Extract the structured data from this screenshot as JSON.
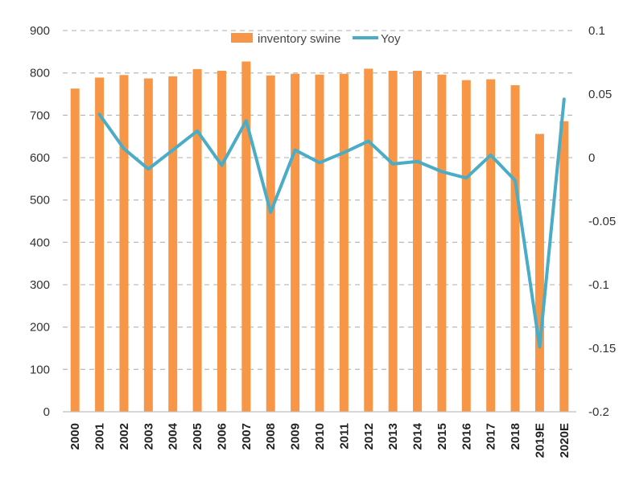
{
  "chart_data": {
    "type": "bar",
    "title": "",
    "xlabel": "",
    "ylabel": "",
    "categories": [
      "2000",
      "2001",
      "2002",
      "2003",
      "2004",
      "2005",
      "2006",
      "2007",
      "2008",
      "2009",
      "2010",
      "2011",
      "2012",
      "2013",
      "2014",
      "2015",
      "2016",
      "2017",
      "2018",
      "2019E",
      "2020E"
    ],
    "series": [
      {
        "name": "inventory swine",
        "type": "bar",
        "axis": "left",
        "color": "#F79646",
        "values": [
          763,
          789,
          795,
          787,
          792,
          809,
          805,
          827,
          794,
          798,
          796,
          798,
          810,
          805,
          805,
          796,
          783,
          785,
          771,
          656,
          686
        ]
      },
      {
        "name": "Yoy",
        "type": "line",
        "axis": "right",
        "color": "#4BACC6",
        "values": [
          null,
          0.034,
          0.007,
          -0.009,
          0.006,
          0.021,
          -0.006,
          0.029,
          -0.043,
          0.006,
          -0.004,
          0.004,
          0.013,
          -0.005,
          -0.003,
          -0.011,
          -0.016,
          0.002,
          -0.018,
          -0.149,
          0.046
        ]
      }
    ],
    "ylim": [
      0,
      900
    ],
    "y_ticks": [
      "0",
      "100",
      "200",
      "300",
      "400",
      "500",
      "600",
      "700",
      "800",
      "900"
    ],
    "y2lim": [
      -0.2,
      0.1
    ],
    "y2_ticks": [
      "-0.2",
      "-0.15",
      "-0.1",
      "-0.05",
      "0",
      "0.05",
      "0.1"
    ],
    "grid": true,
    "legend": "top-center"
  }
}
